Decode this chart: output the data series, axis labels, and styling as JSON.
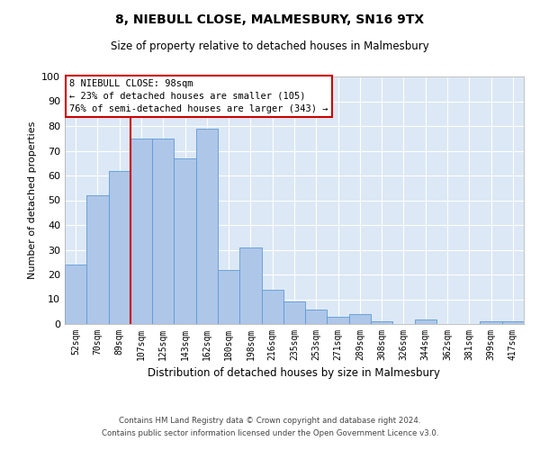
{
  "title1": "8, NIEBULL CLOSE, MALMESBURY, SN16 9TX",
  "title2": "Size of property relative to detached houses in Malmesbury",
  "xlabel": "Distribution of detached houses by size in Malmesbury",
  "ylabel": "Number of detached properties",
  "categories": [
    "52sqm",
    "70sqm",
    "89sqm",
    "107sqm",
    "125sqm",
    "143sqm",
    "162sqm",
    "180sqm",
    "198sqm",
    "216sqm",
    "235sqm",
    "253sqm",
    "271sqm",
    "289sqm",
    "308sqm",
    "326sqm",
    "344sqm",
    "362sqm",
    "381sqm",
    "399sqm",
    "417sqm"
  ],
  "values": [
    24,
    52,
    62,
    75,
    75,
    67,
    79,
    22,
    31,
    14,
    9,
    6,
    3,
    4,
    1,
    0,
    2,
    0,
    0,
    1,
    1
  ],
  "bar_color": "#aec6e8",
  "bar_edge_color": "#5b9bd5",
  "vline_color": "#cc0000",
  "vline_x_index": 2.5,
  "annotation_title": "8 NIEBULL CLOSE: 98sqm",
  "annotation_line1": "← 23% of detached houses are smaller (105)",
  "annotation_line2": "76% of semi-detached houses are larger (343) →",
  "annotation_box_color": "#ffffff",
  "annotation_border_color": "#cc0000",
  "ylim": [
    0,
    100
  ],
  "footnote1": "Contains HM Land Registry data © Crown copyright and database right 2024.",
  "footnote2": "Contains public sector information licensed under the Open Government Licence v3.0.",
  "background_color": "#dce8f5"
}
